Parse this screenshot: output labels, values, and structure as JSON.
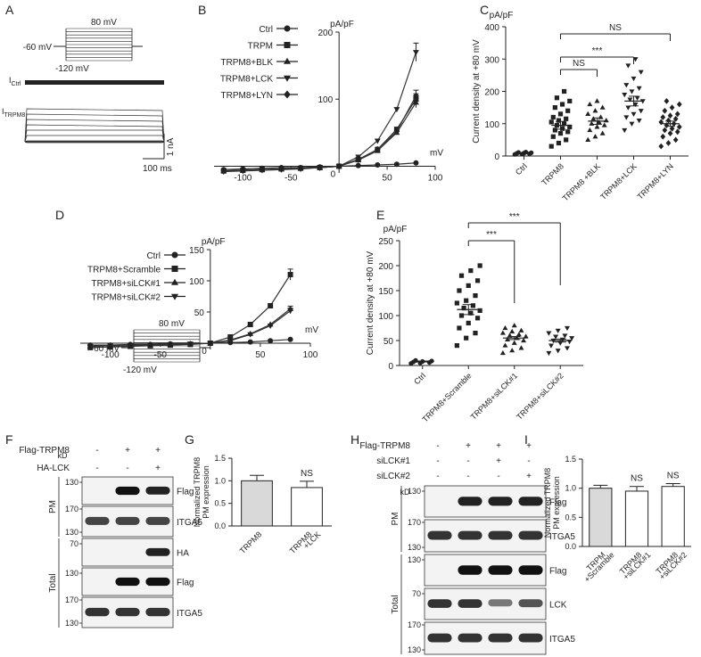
{
  "panels": {
    "A": {
      "label": "A",
      "protocol": {
        "top": "80 mV",
        "hold": "-60 mV",
        "bottom": "-120 mV"
      },
      "trace_ctrl": "I",
      "trace_ctrl_sub": "Ctrl",
      "trace_trpm8": "I",
      "trace_trpm8_sub": "TRPM8",
      "scale_y": "1 nA",
      "scale_x": "100 ms"
    },
    "B": {
      "label": "B"
    },
    "C": {
      "label": "C"
    },
    "D": {
      "label": "D",
      "protocol": {
        "top": "80 mV",
        "hold": "-60 mV",
        "bottom": "-120 mV"
      }
    },
    "E": {
      "label": "E"
    },
    "F": {
      "label": "F",
      "conditions": [
        {
          "name": "Flag-TRPM8",
          "marks": [
            "-",
            "+",
            "+"
          ]
        },
        {
          "name": "HA-LCK",
          "marks": [
            "-",
            "-",
            "+"
          ]
        }
      ],
      "kd": "kD",
      "groups": [
        "PM",
        "Total"
      ],
      "blots": [
        {
          "label": "Flag",
          "markers": [
            "130"
          ],
          "bands": [
            0,
            1,
            0.9
          ]
        },
        {
          "label": "ITGA5",
          "markers": [
            "170",
            "130"
          ],
          "bands": [
            0.7,
            0.7,
            0.7
          ]
        },
        {
          "label": "HA",
          "markers": [
            "70"
          ],
          "bands": [
            0,
            0,
            0.9
          ]
        },
        {
          "label": "Flag",
          "markers": [
            "130"
          ],
          "bands": [
            0,
            1,
            1
          ]
        },
        {
          "label": "ITGA5",
          "markers": [
            "170",
            "130"
          ],
          "bands": [
            0.8,
            0.8,
            0.8
          ]
        }
      ]
    },
    "G": {
      "label": "G"
    },
    "H": {
      "label": "H",
      "conditions": [
        {
          "name": "Flag-TRPM8",
          "marks": [
            "-",
            "+",
            "+",
            "+"
          ]
        },
        {
          "name": "siLCK#1",
          "marks": [
            "-",
            "-",
            "+",
            "-"
          ]
        },
        {
          "name": "siLCK#2",
          "marks": [
            "-",
            "-",
            "-",
            "+"
          ]
        }
      ],
      "kd": "kD",
      "groups": [
        "PM",
        "Total"
      ],
      "blots": [
        {
          "label": "Flag",
          "markers": [
            "130"
          ],
          "bands": [
            0,
            0.9,
            0.9,
            0.9
          ]
        },
        {
          "label": "ITGA5",
          "markers": [
            "170",
            "130"
          ],
          "bands": [
            0.8,
            0.8,
            0.8,
            0.8
          ]
        },
        {
          "label": "Flag",
          "markers": [
            "130"
          ],
          "bands": [
            0,
            1,
            1,
            1
          ]
        },
        {
          "label": "LCK",
          "markers": [
            "70"
          ],
          "bands": [
            0.8,
            0.8,
            0.4,
            0.6
          ]
        },
        {
          "label": "ITGA5",
          "markers": [
            "170",
            "130"
          ],
          "bands": [
            0.8,
            0.8,
            0.8,
            0.8
          ]
        }
      ]
    },
    "I": {
      "label": "I"
    }
  },
  "chart_data": [
    {
      "id": "B",
      "type": "line",
      "unit_label": "pA/pF",
      "xlabel": "mV",
      "xlim": [
        -130,
        100
      ],
      "ylim": [
        -10,
        200
      ],
      "xticks": [
        -100,
        -50,
        0,
        50,
        100
      ],
      "yticks": [
        100,
        200
      ],
      "x": [
        -120,
        -100,
        -80,
        -60,
        -40,
        -20,
        0,
        20,
        40,
        60,
        80
      ],
      "series": [
        {
          "name": "Ctrl",
          "marker": "circle",
          "values": [
            -5,
            -4,
            -3,
            -2,
            -2,
            -1,
            0,
            1,
            2,
            3,
            5
          ]
        },
        {
          "name": "TRPM",
          "marker": "square",
          "values": [
            -7,
            -6,
            -5,
            -4,
            -3,
            -2,
            0,
            10,
            25,
            55,
            100
          ]
        },
        {
          "name": "TRPM8+BLK",
          "marker": "triangle-up",
          "values": [
            -7,
            -6,
            -5,
            -4,
            -3,
            -2,
            0,
            9,
            23,
            50,
            95
          ]
        },
        {
          "name": "TRPM8+LCK",
          "marker": "triangle-down",
          "values": [
            -8,
            -7,
            -6,
            -5,
            -4,
            -2,
            0,
            14,
            38,
            85,
            170
          ]
        },
        {
          "name": "TRPM8+LYN",
          "marker": "diamond",
          "values": [
            -7,
            -6,
            -5,
            -4,
            -3,
            -2,
            0,
            10,
            25,
            52,
            105
          ]
        }
      ]
    },
    {
      "id": "C",
      "type": "scatter",
      "unit_label": "pA/pF",
      "ylabel": "Current density at +80 mV",
      "ylim": [
        0,
        400
      ],
      "yticks": [
        0,
        100,
        200,
        300,
        400
      ],
      "categories": [
        "Ctrl",
        "TRPM8",
        "TRPM8 +BLK",
        "TRPM8+LCK",
        "TRPM8+LYN"
      ],
      "markers": [
        "circle",
        "square",
        "triangle-up",
        "triangle-down",
        "diamond"
      ],
      "values": [
        [
          5,
          6,
          7,
          8,
          9,
          10,
          11,
          12
        ],
        [
          30,
          40,
          50,
          60,
          70,
          75,
          80,
          85,
          90,
          95,
          100,
          105,
          110,
          115,
          120,
          130,
          140,
          150,
          160,
          170,
          180,
          200
        ],
        [
          50,
          60,
          70,
          80,
          90,
          95,
          100,
          105,
          110,
          115,
          120,
          130,
          140,
          150,
          160,
          170
        ],
        [
          80,
          100,
          110,
          120,
          130,
          140,
          150,
          160,
          170,
          175,
          180,
          190,
          200,
          210,
          220,
          240,
          260,
          280,
          300
        ],
        [
          30,
          40,
          50,
          60,
          70,
          75,
          80,
          85,
          90,
          95,
          100,
          105,
          110,
          115,
          120,
          125,
          130,
          140,
          150,
          160,
          170
        ]
      ],
      "means": [
        8,
        95,
        108,
        170,
        100
      ],
      "sem": [
        1,
        12,
        10,
        15,
        8
      ],
      "significance": [
        {
          "from": 1,
          "to": 2,
          "label": "NS"
        },
        {
          "from": 1,
          "to": 3,
          "label": "***"
        },
        {
          "from": 1,
          "to": 4,
          "label": "NS"
        }
      ]
    },
    {
      "id": "D",
      "type": "line",
      "unit_label": "pA/pF",
      "xlabel": "mV",
      "xlim": [
        -130,
        100
      ],
      "ylim": [
        -10,
        150
      ],
      "xticks": [
        -100,
        -50,
        0,
        50,
        100
      ],
      "yticks": [
        50,
        100,
        150
      ],
      "x": [
        -120,
        -100,
        -80,
        -60,
        -40,
        -20,
        0,
        20,
        40,
        60,
        80
      ],
      "series": [
        {
          "name": "Ctrl",
          "marker": "circle",
          "values": [
            -3,
            -3,
            -2,
            -2,
            -1,
            -1,
            0,
            1,
            2,
            4,
            6
          ]
        },
        {
          "name": "TRPM8+Scramble",
          "marker": "square",
          "values": [
            -7,
            -6,
            -5,
            -4,
            -3,
            -2,
            0,
            10,
            30,
            60,
            110
          ]
        },
        {
          "name": "TRPM8+siLCK#1",
          "marker": "triangle-up",
          "values": [
            -5,
            -4,
            -4,
            -3,
            -2,
            -1,
            0,
            5,
            15,
            30,
            55
          ]
        },
        {
          "name": "TRPM8+siLCK#2",
          "marker": "triangle-down",
          "values": [
            -5,
            -4,
            -4,
            -3,
            -2,
            -1,
            0,
            4,
            14,
            28,
            52
          ]
        }
      ]
    },
    {
      "id": "E",
      "type": "scatter",
      "unit_label": "pA/pF",
      "ylabel": "Current density at +80 mV",
      "ylim": [
        0,
        250
      ],
      "yticks": [
        0,
        50,
        100,
        150,
        200,
        250
      ],
      "categories": [
        "Ctrl",
        "TRPM8+Scramble",
        "TRPM8+siLCK#1",
        "TRPM8+siLCK#2"
      ],
      "markers": [
        "circle",
        "square",
        "triangle-up",
        "triangle-down"
      ],
      "values": [
        [
          4,
          5,
          6,
          7,
          8,
          9,
          10
        ],
        [
          40,
          55,
          65,
          75,
          85,
          95,
          100,
          105,
          110,
          115,
          120,
          125,
          130,
          140,
          150,
          160,
          170,
          180,
          190,
          200
        ],
        [
          25,
          30,
          35,
          40,
          45,
          50,
          52,
          55,
          58,
          60,
          62,
          65,
          68,
          70,
          75,
          80
        ],
        [
          25,
          30,
          35,
          40,
          45,
          48,
          50,
          52,
          55,
          58,
          60,
          65,
          70,
          75
        ]
      ],
      "means": [
        8,
        112,
        55,
        50
      ],
      "sem": [
        1,
        10,
        3,
        3
      ],
      "significance": [
        {
          "from": 1,
          "to": 2,
          "label": "***"
        },
        {
          "from": 1,
          "to": 3,
          "label": "***"
        }
      ]
    },
    {
      "id": "G",
      "type": "bar",
      "ylabel": "Normalized TRPM8 PM expression",
      "ylim": [
        0,
        1.5
      ],
      "yticks": [
        0.0,
        0.5,
        1.0,
        1.5
      ],
      "categories": [
        "TRPM8",
        "TRPM8 +LCK"
      ],
      "values": [
        1.0,
        0.85
      ],
      "errors": [
        0.12,
        0.14
      ],
      "fills": [
        "#d9d9d9",
        "#ffffff"
      ],
      "annotations": [
        {
          "index": 1,
          "label": "NS"
        }
      ]
    },
    {
      "id": "I",
      "type": "bar",
      "ylabel": "Normalized TRPM8 PM expression",
      "ylim": [
        0,
        1.5
      ],
      "yticks": [
        0.0,
        0.5,
        1.0,
        1.5
      ],
      "categories": [
        "TRPM +Scramble",
        "TRPM8 +siLCK#1",
        "TRPM8 +siLCK#2"
      ],
      "values": [
        1.0,
        0.95,
        1.03
      ],
      "errors": [
        0.05,
        0.08,
        0.05
      ],
      "fills": [
        "#d9d9d9",
        "#ffffff",
        "#ffffff"
      ],
      "annotations": [
        {
          "index": 1,
          "label": "NS"
        },
        {
          "index": 2,
          "label": "NS"
        }
      ]
    }
  ]
}
